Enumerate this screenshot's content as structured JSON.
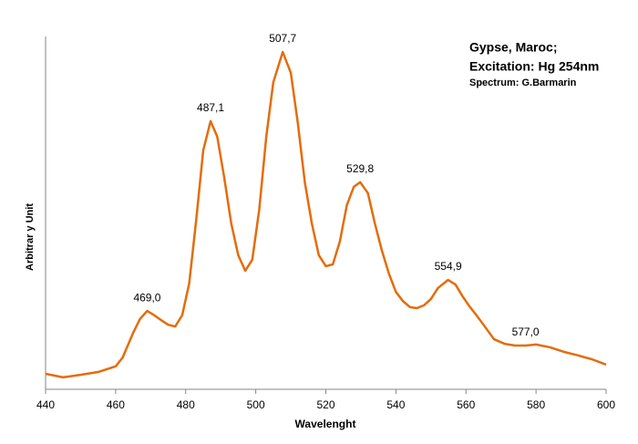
{
  "chart_data": {
    "type": "line",
    "title": [
      "Gypse, Maroc;",
      "Excitation: Hg 254nm"
    ],
    "subtitle": "Spectrum: G.Barmarin",
    "x_label": "Wavelenght",
    "y_label": "Arbitrar y Unit",
    "xlim": [
      440,
      600
    ],
    "xticks": [
      440,
      460,
      480,
      500,
      520,
      540,
      560,
      580,
      600
    ],
    "ylim": [
      0,
      100
    ],
    "grid": false,
    "series": [
      {
        "color": "#e46c0a",
        "x": [
          440,
          445,
          450,
          455,
          460,
          462,
          465,
          467,
          469,
          471,
          473,
          475,
          477,
          479,
          481,
          483,
          485,
          487.1,
          489,
          491,
          493,
          495,
          497,
          499,
          501,
          503,
          505,
          507.7,
          510,
          512,
          514,
          516,
          518,
          520,
          522,
          524,
          526,
          528,
          529.8,
          532,
          534,
          536,
          538,
          540,
          542,
          544,
          546,
          548,
          550,
          552,
          554.9,
          557,
          559,
          561,
          563,
          565,
          568,
          571,
          574,
          577,
          580,
          584,
          588,
          592,
          596,
          600
        ],
        "values": [
          4.4,
          3.4,
          4.1,
          4.9,
          6.5,
          9,
          16,
          20,
          22.2,
          21,
          19.6,
          18.3,
          17.8,
          21,
          30,
          48,
          67.7,
          76,
          71.6,
          60,
          47,
          38,
          33.6,
          36.7,
          51,
          71.6,
          87,
          95.6,
          89.7,
          75.5,
          58.7,
          47,
          38,
          34.9,
          35.4,
          41.9,
          52.2,
          57.4,
          58.7,
          55.6,
          47,
          39.3,
          32.8,
          27.6,
          25,
          23.3,
          23,
          23.8,
          25.6,
          28.7,
          31,
          29.7,
          26.4,
          23.5,
          21,
          18.3,
          14.2,
          12.9,
          12.4,
          12.4,
          12.7,
          11.9,
          10.6,
          9.6,
          8.5,
          7
        ]
      }
    ],
    "annotations": [
      {
        "text": "469,0",
        "x": 469.0
      },
      {
        "text": "487,1",
        "x": 487.1
      },
      {
        "text": "507,7",
        "x": 507.7
      },
      {
        "text": "529,8",
        "x": 529.8
      },
      {
        "text": "554,9",
        "x": 554.9
      },
      {
        "text": "577,0",
        "x": 577.0
      }
    ]
  }
}
